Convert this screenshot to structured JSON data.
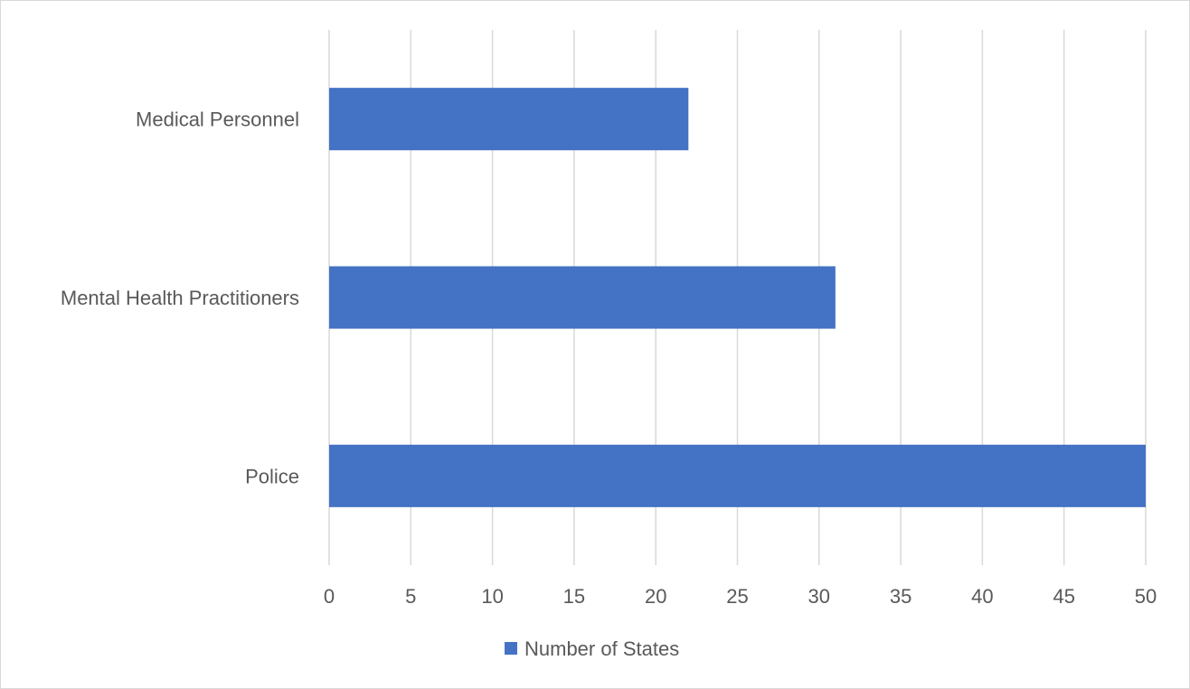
{
  "chart_data": {
    "type": "bar",
    "orientation": "horizontal",
    "title": "",
    "xlabel": "",
    "ylabel": "",
    "categories": [
      "Medical Personnel",
      "Mental Health Practitioners",
      "Police"
    ],
    "series": [
      {
        "name": "Number of States",
        "values": [
          22,
          31,
          50
        ],
        "color": "#4472c4"
      }
    ],
    "xlim": [
      0,
      50
    ],
    "x_ticks": [
      0,
      5,
      10,
      15,
      20,
      25,
      30,
      35,
      40,
      45,
      50
    ],
    "grid": "vertical",
    "legend_position": "bottom",
    "colors": {
      "gridline": "#d9d9d9",
      "label": "#595959",
      "border": "#d9d9d9"
    }
  }
}
